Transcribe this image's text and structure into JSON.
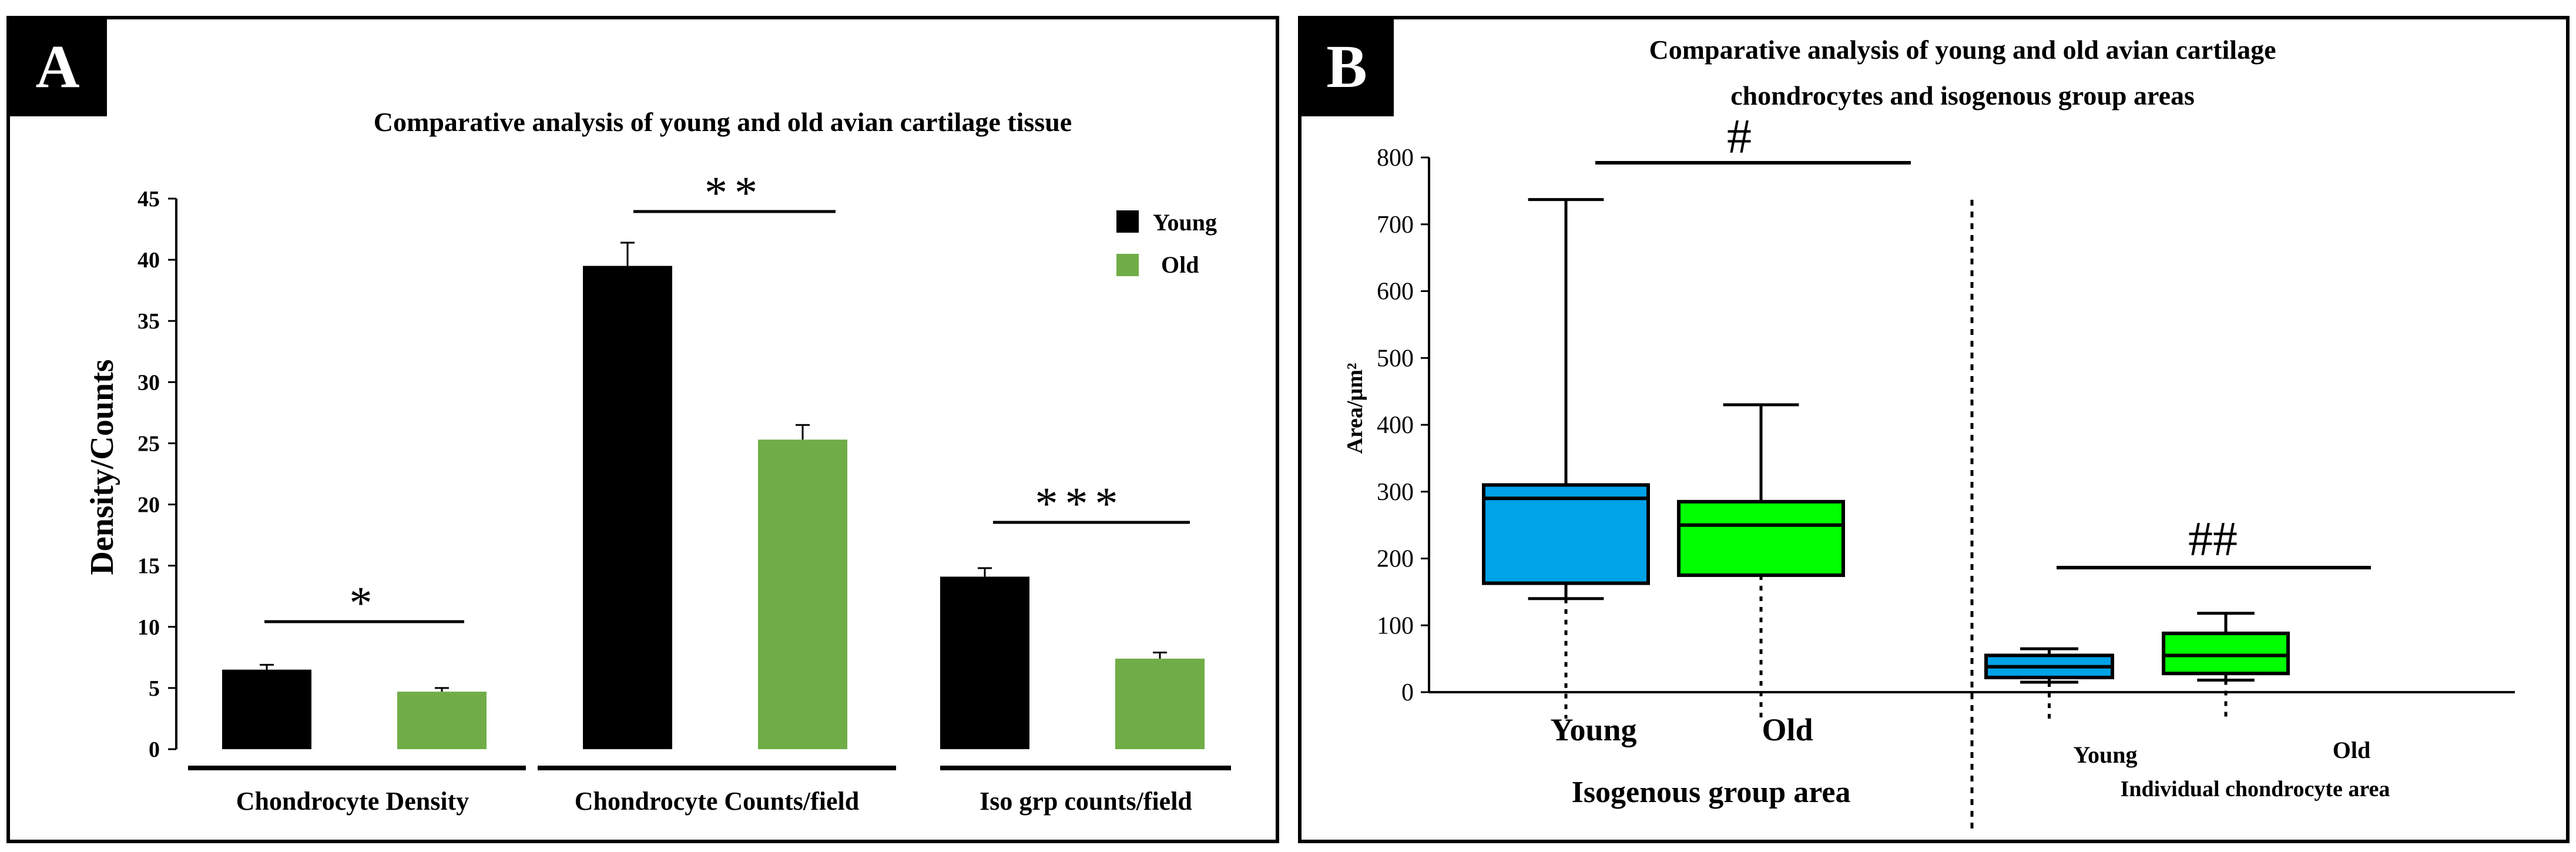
{
  "colors": {
    "young_bar": "#000000",
    "old_bar": "#70ad47",
    "young_box": "#00a2e8",
    "old_box": "#00ff00",
    "frame": "#000000",
    "panel_label_bg": "#000000",
    "panel_label_fg": "#ffffff"
  },
  "chart_data": [
    {
      "type": "bar",
      "panel_label": "A",
      "title": "Comparative  analysis of young and old avian cartilage tissue",
      "ylabel": "Density/Counts",
      "ylim": [
        0,
        45
      ],
      "yticks": [
        "0",
        "5",
        "10",
        "15",
        "20",
        "25",
        "30",
        "35",
        "40",
        "45"
      ],
      "legend": {
        "position": "top-right",
        "entries": [
          "Young",
          "Old"
        ]
      },
      "categories": [
        "Chondrocyte  Density",
        "Chondrocyte  Counts/field",
        "Iso grp  counts/field"
      ],
      "series": [
        {
          "name": "Young",
          "values": [
            6.5,
            39.5,
            14.1
          ],
          "errors": [
            0.4,
            1.9,
            0.7
          ]
        },
        {
          "name": "Old",
          "values": [
            4.7,
            25.3,
            7.4
          ],
          "errors": [
            0.3,
            1.2,
            0.5
          ]
        }
      ],
      "significance": [
        "*",
        "**",
        "***"
      ]
    },
    {
      "type": "box",
      "panel_label": "B",
      "title_lines": [
        "Comparative analysis of young and old avian cartilage",
        "chondrocytes and isogenous group areas"
      ],
      "ylabel": "Area/µm²",
      "ylim": [
        0,
        800
      ],
      "yticks": [
        "0",
        "100",
        "200",
        "300",
        "400",
        "500",
        "600",
        "700",
        "800"
      ],
      "groups": [
        {
          "name": "Isogenous group area",
          "significance": "#",
          "boxes": [
            {
              "name": "Young",
              "whisker_low": 140,
              "q1": 163,
              "median": 290,
              "q3": 310,
              "whisker_high": 737,
              "min": 0
            },
            {
              "name": "Old",
              "whisker_low": 175,
              "q1": 175,
              "median": 250,
              "q3": 285,
              "whisker_high": 430,
              "min": 0
            }
          ]
        },
        {
          "name": "Individual chondrocyte area",
          "significance": "##",
          "boxes": [
            {
              "name": "Young",
              "whisker_low": 15,
              "q1": 22,
              "median": 38,
              "q3": 55,
              "whisker_high": 65,
              "min": 0
            },
            {
              "name": "Old",
              "whisker_low": 18,
              "q1": 28,
              "median": 55,
              "q3": 88,
              "whisker_high": 118,
              "min": 0
            }
          ]
        }
      ]
    }
  ]
}
